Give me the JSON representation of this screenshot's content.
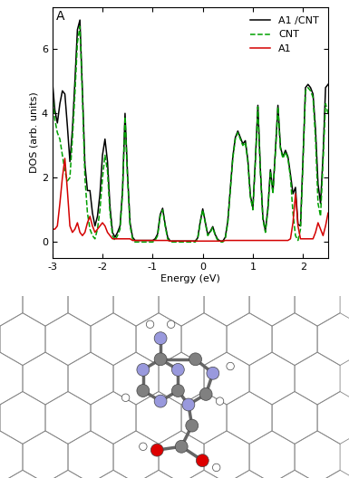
{
  "chart_data": {
    "type": "line",
    "title": "A",
    "x_label": "Energy (eV)",
    "y_label": "DOS (arb. units)",
    "x": [
      -3.0,
      -2.95,
      -2.9,
      -2.85,
      -2.8,
      -2.75,
      -2.7,
      -2.65,
      -2.6,
      -2.55,
      -2.5,
      -2.45,
      -2.4,
      -2.35,
      -2.3,
      -2.25,
      -2.2,
      -2.15,
      -2.1,
      -2.05,
      -2.0,
      -1.95,
      -1.9,
      -1.85,
      -1.8,
      -1.75,
      -1.7,
      -1.65,
      -1.6,
      -1.55,
      -1.5,
      -1.45,
      -1.4,
      -1.35,
      -1.3,
      -1.25,
      -1.2,
      -1.15,
      -1.1,
      -1.05,
      -1.0,
      -0.95,
      -0.9,
      -0.85,
      -0.8,
      -0.75,
      -0.7,
      -0.65,
      -0.6,
      -0.55,
      -0.5,
      -0.45,
      -0.4,
      -0.35,
      -0.3,
      -0.25,
      -0.2,
      -0.15,
      -0.1,
      -0.05,
      0.0,
      0.05,
      0.1,
      0.15,
      0.2,
      0.25,
      0.3,
      0.35,
      0.4,
      0.45,
      0.5,
      0.55,
      0.6,
      0.65,
      0.7,
      0.75,
      0.8,
      0.85,
      0.9,
      0.95,
      1.0,
      1.05,
      1.1,
      1.15,
      1.2,
      1.25,
      1.3,
      1.35,
      1.4,
      1.45,
      1.5,
      1.55,
      1.6,
      1.65,
      1.7,
      1.75,
      1.8,
      1.85,
      1.9,
      1.95,
      2.0,
      2.05,
      2.1,
      2.15,
      2.2,
      2.25,
      2.3,
      2.35,
      2.4,
      2.45,
      2.5
    ],
    "series": [
      {
        "name": "A1 /CNT",
        "color": "#000000",
        "line_style": "solid",
        "values": [
          5.0,
          4.1,
          3.7,
          4.3,
          4.7,
          4.6,
          3.6,
          2.5,
          3.5,
          5.0,
          6.6,
          6.9,
          4.7,
          2.4,
          1.6,
          1.6,
          0.9,
          0.5,
          0.8,
          1.5,
          2.7,
          3.2,
          2.5,
          1.1,
          0.3,
          0.15,
          0.3,
          0.5,
          1.6,
          4.0,
          2.1,
          0.6,
          0.15,
          0.05,
          0.05,
          0.05,
          0.05,
          0.05,
          0.05,
          0.05,
          0.05,
          0.1,
          0.25,
          0.85,
          1.05,
          0.55,
          0.15,
          0.03,
          0.03,
          0.03,
          0.03,
          0.03,
          0.03,
          0.03,
          0.03,
          0.03,
          0.03,
          0.03,
          0.13,
          0.63,
          1.03,
          0.63,
          0.23,
          0.33,
          0.48,
          0.23,
          0.08,
          0.03,
          0.03,
          0.15,
          0.65,
          1.65,
          2.65,
          3.25,
          3.45,
          3.25,
          3.05,
          3.15,
          2.55,
          1.45,
          1.05,
          2.55,
          4.25,
          2.25,
          0.75,
          0.35,
          1.05,
          2.25,
          1.55,
          2.85,
          4.25,
          2.95,
          2.65,
          2.85,
          2.65,
          2.1,
          1.5,
          1.7,
          0.55,
          0.5,
          2.6,
          4.8,
          4.9,
          4.8,
          4.6,
          3.5,
          1.8,
          1.2,
          2.7,
          4.8,
          4.9
        ]
      },
      {
        "name": "CNT",
        "color": "#00a000",
        "line_style": "dashed",
        "values": [
          4.6,
          3.8,
          3.4,
          3.2,
          2.7,
          2.2,
          1.9,
          2.0,
          3.2,
          4.6,
          6.2,
          6.7,
          4.5,
          2.0,
          0.9,
          0.4,
          0.2,
          0.1,
          0.4,
          1.0,
          2.0,
          2.7,
          2.2,
          0.9,
          0.2,
          0.05,
          0.2,
          0.4,
          1.5,
          3.9,
          2.0,
          0.5,
          0.1,
          0.0,
          0.0,
          0.0,
          0.0,
          0.0,
          0.0,
          0.0,
          0.0,
          0.05,
          0.2,
          0.8,
          1.0,
          0.5,
          0.1,
          0.0,
          0.0,
          0.0,
          0.0,
          0.0,
          0.0,
          0.0,
          0.0,
          0.0,
          0.0,
          0.0,
          0.1,
          0.6,
          1.0,
          0.6,
          0.2,
          0.3,
          0.45,
          0.2,
          0.05,
          0.0,
          0.0,
          0.1,
          0.6,
          1.6,
          2.6,
          3.2,
          3.4,
          3.2,
          3.0,
          3.1,
          2.5,
          1.4,
          1.0,
          2.5,
          4.2,
          2.2,
          0.7,
          0.3,
          1.0,
          2.2,
          1.5,
          2.8,
          4.2,
          2.9,
          2.6,
          2.8,
          2.6,
          2.0,
          0.9,
          0.2,
          0.05,
          0.4,
          2.5,
          4.7,
          4.8,
          4.7,
          4.5,
          3.2,
          1.2,
          0.8,
          2.5,
          4.3,
          4.0
        ]
      },
      {
        "name": "A1",
        "color": "#d40000",
        "line_style": "solid",
        "values": [
          0.4,
          0.4,
          0.5,
          1.2,
          2.0,
          2.6,
          1.6,
          0.5,
          0.3,
          0.4,
          0.6,
          0.3,
          0.2,
          0.3,
          0.6,
          0.8,
          0.5,
          0.3,
          0.4,
          0.5,
          0.6,
          0.5,
          0.3,
          0.2,
          0.1,
          0.1,
          0.1,
          0.1,
          0.1,
          0.1,
          0.1,
          0.1,
          0.05,
          0.05,
          0.05,
          0.05,
          0.05,
          0.05,
          0.05,
          0.05,
          0.05,
          0.05,
          0.05,
          0.05,
          0.05,
          0.05,
          0.05,
          0.03,
          0.03,
          0.03,
          0.03,
          0.03,
          0.03,
          0.03,
          0.03,
          0.03,
          0.03,
          0.03,
          0.03,
          0.03,
          0.03,
          0.03,
          0.03,
          0.03,
          0.03,
          0.03,
          0.03,
          0.03,
          0.03,
          0.05,
          0.05,
          0.05,
          0.05,
          0.05,
          0.05,
          0.05,
          0.05,
          0.05,
          0.05,
          0.05,
          0.05,
          0.05,
          0.05,
          0.05,
          0.05,
          0.05,
          0.05,
          0.05,
          0.05,
          0.05,
          0.05,
          0.05,
          0.05,
          0.05,
          0.05,
          0.1,
          0.6,
          1.5,
          0.5,
          0.1,
          0.1,
          0.1,
          0.1,
          0.1,
          0.1,
          0.3,
          0.6,
          0.4,
          0.2,
          0.5,
          0.9
        ]
      }
    ],
    "xlim": [
      -3,
      2.5
    ],
    "xticks": [
      -3,
      -2,
      -1,
      0,
      1,
      2
    ],
    "ylim": [
      -0.5,
      7.3
    ],
    "yticks": [
      0,
      2,
      4,
      6
    ],
    "legend": "upper right",
    "grid": false
  }
}
